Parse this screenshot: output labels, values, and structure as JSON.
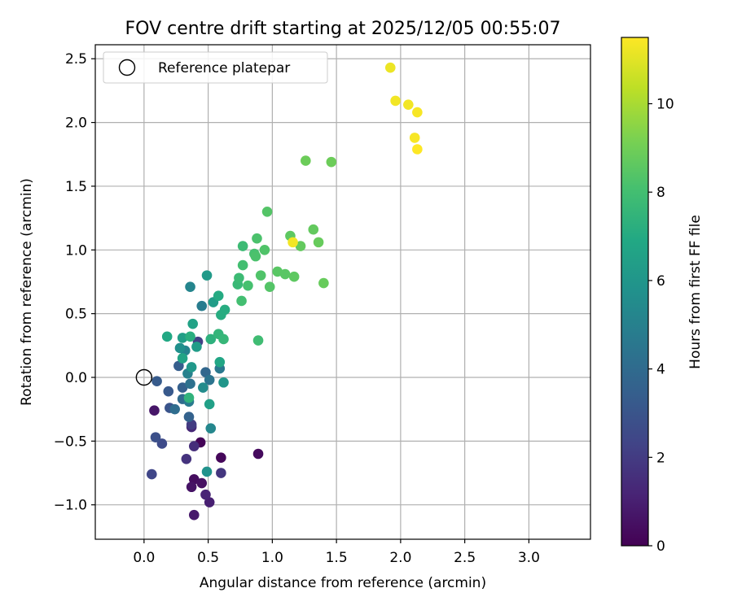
{
  "chart_data": {
    "type": "scatter",
    "title": "FOV centre drift starting at 2025/12/05 00:55:07",
    "xlabel": "Angular distance from reference (arcmin)",
    "ylabel": "Rotation from reference (arcmin)",
    "xlim": [
      -0.38,
      3.48
    ],
    "ylim": [
      -1.27,
      2.61
    ],
    "xticks": [
      0.0,
      0.5,
      1.0,
      1.5,
      2.0,
      2.5,
      3.0
    ],
    "xtick_labels": [
      "0.0",
      "0.5",
      "1.0",
      "1.5",
      "2.0",
      "2.5",
      "3.0"
    ],
    "yticks": [
      -1.0,
      -0.5,
      0.0,
      0.5,
      1.0,
      1.5,
      2.0,
      2.5
    ],
    "ytick_labels": [
      "−1.0",
      "−0.5",
      "0.0",
      "0.5",
      "1.0",
      "1.5",
      "2.0",
      "2.5"
    ],
    "grid": true,
    "legend": {
      "position": "top-left",
      "entries": [
        {
          "label": "Reference platepar",
          "marker": "hollow-circle"
        }
      ]
    },
    "reference_point": {
      "x": 0.0,
      "y": 0.0
    },
    "colorbar": {
      "label": "Hours from first FF file",
      "colormap": "viridis",
      "range": [
        0,
        11.5
      ],
      "ticks": [
        0,
        2,
        4,
        6,
        8,
        10
      ],
      "tick_labels": [
        "0",
        "2",
        "4",
        "6",
        "8",
        "10"
      ]
    },
    "points": [
      {
        "x": 0.44,
        "y": -0.51,
        "c": 0.1
      },
      {
        "x": 0.6,
        "y": -0.63,
        "c": 0.2
      },
      {
        "x": 0.89,
        "y": -0.6,
        "c": 0.3
      },
      {
        "x": 0.39,
        "y": -0.8,
        "c": 0.4
      },
      {
        "x": 0.45,
        "y": -0.83,
        "c": 0.5
      },
      {
        "x": 0.37,
        "y": -0.86,
        "c": 0.6
      },
      {
        "x": 0.39,
        "y": -1.08,
        "c": 0.8
      },
      {
        "x": 0.08,
        "y": -0.26,
        "c": 0.7
      },
      {
        "x": 0.51,
        "y": -0.98,
        "c": 1.0
      },
      {
        "x": 0.48,
        "y": -0.92,
        "c": 1.2
      },
      {
        "x": 0.37,
        "y": -0.39,
        "c": 1.3
      },
      {
        "x": 0.39,
        "y": -0.54,
        "c": 1.5
      },
      {
        "x": 0.33,
        "y": -0.64,
        "c": 1.7
      },
      {
        "x": 0.6,
        "y": -0.75,
        "c": 1.8
      },
      {
        "x": 0.37,
        "y": -0.37,
        "c": 2.0
      },
      {
        "x": 0.42,
        "y": 0.28,
        "c": 2.2
      },
      {
        "x": 0.06,
        "y": -0.76,
        "c": 2.4
      },
      {
        "x": 0.14,
        "y": -0.52,
        "c": 2.6
      },
      {
        "x": 0.09,
        "y": -0.47,
        "c": 2.8
      },
      {
        "x": 0.2,
        "y": -0.24,
        "c": 3.0
      },
      {
        "x": 0.19,
        "y": -0.11,
        "c": 3.2
      },
      {
        "x": 0.1,
        "y": -0.03,
        "c": 3.3
      },
      {
        "x": 0.27,
        "y": 0.09,
        "c": 3.4
      },
      {
        "x": 0.3,
        "y": -0.08,
        "c": 3.5
      },
      {
        "x": 0.35,
        "y": -0.31,
        "c": 3.6
      },
      {
        "x": 0.48,
        "y": 0.04,
        "c": 3.8
      },
      {
        "x": 0.3,
        "y": -0.17,
        "c": 4.0
      },
      {
        "x": 0.24,
        "y": -0.25,
        "c": 4.1
      },
      {
        "x": 0.36,
        "y": -0.05,
        "c": 4.3
      },
      {
        "x": 0.51,
        "y": -0.02,
        "c": 4.4
      },
      {
        "x": 0.59,
        "y": 0.07,
        "c": 4.6
      },
      {
        "x": 0.35,
        "y": -0.19,
        "c": 4.7
      },
      {
        "x": 0.45,
        "y": 0.56,
        "c": 4.8
      },
      {
        "x": 0.34,
        "y": 0.03,
        "c": 5.0
      },
      {
        "x": 0.32,
        "y": 0.21,
        "c": 5.1
      },
      {
        "x": 0.36,
        "y": 0.71,
        "c": 5.2
      },
      {
        "x": 0.52,
        "y": -0.4,
        "c": 5.3
      },
      {
        "x": 0.46,
        "y": -0.08,
        "c": 5.5
      },
      {
        "x": 0.28,
        "y": 0.23,
        "c": 5.7
      },
      {
        "x": 0.49,
        "y": -0.74,
        "c": 5.8
      },
      {
        "x": 0.62,
        "y": -0.04,
        "c": 6.0
      },
      {
        "x": 0.37,
        "y": 0.08,
        "c": 6.1
      },
      {
        "x": 0.49,
        "y": 0.8,
        "c": 6.2
      },
      {
        "x": 0.41,
        "y": 0.24,
        "c": 6.3
      },
      {
        "x": 0.54,
        "y": 0.59,
        "c": 6.3
      },
      {
        "x": 0.3,
        "y": 0.31,
        "c": 6.4
      },
      {
        "x": 0.51,
        "y": -0.21,
        "c": 6.5
      },
      {
        "x": 0.38,
        "y": 0.42,
        "c": 6.6
      },
      {
        "x": 0.3,
        "y": 0.15,
        "c": 6.7
      },
      {
        "x": 0.59,
        "y": 0.12,
        "c": 6.8
      },
      {
        "x": 0.18,
        "y": 0.32,
        "c": 6.9
      },
      {
        "x": 0.58,
        "y": 0.64,
        "c": 7.0
      },
      {
        "x": 0.6,
        "y": 0.49,
        "c": 7.1
      },
      {
        "x": 0.63,
        "y": 0.53,
        "c": 7.1
      },
      {
        "x": 0.36,
        "y": 0.32,
        "c": 7.2
      },
      {
        "x": 0.52,
        "y": 0.3,
        "c": 7.3
      },
      {
        "x": 0.35,
        "y": -0.16,
        "c": 7.4
      },
      {
        "x": 0.58,
        "y": 0.34,
        "c": 7.5
      },
      {
        "x": 0.62,
        "y": 0.3,
        "c": 7.6
      },
      {
        "x": 0.73,
        "y": 0.73,
        "c": 7.7
      },
      {
        "x": 0.74,
        "y": 0.78,
        "c": 7.8
      },
      {
        "x": 0.77,
        "y": 1.03,
        "c": 7.8
      },
      {
        "x": 0.89,
        "y": 0.29,
        "c": 7.9
      },
      {
        "x": 0.77,
        "y": 0.88,
        "c": 8.0
      },
      {
        "x": 0.76,
        "y": 0.6,
        "c": 8.0
      },
      {
        "x": 0.81,
        "y": 0.72,
        "c": 8.1
      },
      {
        "x": 0.86,
        "y": 0.97,
        "c": 8.1
      },
      {
        "x": 0.87,
        "y": 0.95,
        "c": 8.2
      },
      {
        "x": 0.88,
        "y": 1.09,
        "c": 8.2
      },
      {
        "x": 0.91,
        "y": 0.8,
        "c": 8.3
      },
      {
        "x": 0.94,
        "y": 1.0,
        "c": 8.3
      },
      {
        "x": 0.98,
        "y": 0.71,
        "c": 8.4
      },
      {
        "x": 0.96,
        "y": 1.3,
        "c": 8.4
      },
      {
        "x": 1.04,
        "y": 0.83,
        "c": 8.5
      },
      {
        "x": 1.1,
        "y": 0.81,
        "c": 8.5
      },
      {
        "x": 1.14,
        "y": 1.11,
        "c": 8.6
      },
      {
        "x": 1.17,
        "y": 0.79,
        "c": 8.6
      },
      {
        "x": 1.22,
        "y": 1.03,
        "c": 8.7
      },
      {
        "x": 1.32,
        "y": 1.16,
        "c": 8.7
      },
      {
        "x": 1.36,
        "y": 1.06,
        "c": 8.8
      },
      {
        "x": 1.4,
        "y": 0.74,
        "c": 8.8
      },
      {
        "x": 1.26,
        "y": 1.7,
        "c": 8.9
      },
      {
        "x": 1.46,
        "y": 1.69,
        "c": 8.9
      },
      {
        "x": 1.16,
        "y": 1.06,
        "c": 11.3
      },
      {
        "x": 1.92,
        "y": 2.43,
        "c": 11.2
      },
      {
        "x": 1.96,
        "y": 2.17,
        "c": 11.3
      },
      {
        "x": 2.06,
        "y": 2.14,
        "c": 11.3
      },
      {
        "x": 2.13,
        "y": 2.08,
        "c": 11.4
      },
      {
        "x": 2.11,
        "y": 1.88,
        "c": 11.4
      },
      {
        "x": 2.13,
        "y": 1.79,
        "c": 11.5
      }
    ]
  }
}
